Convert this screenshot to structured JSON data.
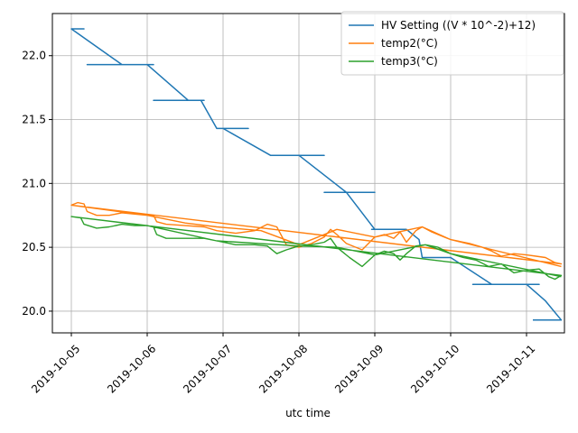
{
  "chart_data": {
    "type": "line",
    "title": "",
    "xlabel": "utc time",
    "ylabel": "",
    "xlim": [
      "2019-10-04T18:00",
      "2019-10-11T12:00"
    ],
    "ylim": [
      19.83,
      22.33
    ],
    "grid": true,
    "legend_position": "top-right",
    "x_tick_labels": [
      "2019-10-05",
      "2019-10-06",
      "2019-10-07",
      "2019-10-08",
      "2019-10-09",
      "2019-10-10",
      "2019-10-11"
    ],
    "y_ticks": [
      20.0,
      20.5,
      21.0,
      21.5,
      22.0
    ],
    "y_tick_labels": [
      "20.0",
      "20.5",
      "21.0",
      "21.5",
      "22.0"
    ],
    "series": [
      {
        "name": "HV Setting ((V * 10^-2)+12)",
        "color": "#1f77b4",
        "points": [
          [
            "2019-10-05T00:00",
            22.21
          ],
          [
            "2019-10-05T04:00",
            22.21
          ],
          [
            "2019-10-05T00:00",
            22.21
          ],
          [
            "2019-10-05T16:00",
            21.93
          ],
          [
            "2019-10-05T05:00",
            21.93
          ],
          [
            "2019-10-06T02:00",
            21.93
          ],
          [
            "2019-10-06T00:00",
            21.93
          ],
          [
            "2019-10-06T13:00",
            21.65
          ],
          [
            "2019-10-06T02:00",
            21.65
          ],
          [
            "2019-10-06T18:00",
            21.65
          ],
          [
            "2019-10-06T17:00",
            21.65
          ],
          [
            "2019-10-06T22:00",
            21.43
          ],
          [
            "2019-10-07T08:00",
            21.43
          ],
          [
            "2019-10-06T22:00",
            21.43
          ],
          [
            "2019-10-07T00:00",
            21.43
          ],
          [
            "2019-10-07T15:00",
            21.22
          ],
          [
            "2019-10-07T17:00",
            21.22
          ],
          [
            "2019-10-08T08:00",
            21.22
          ],
          [
            "2019-10-08T00:00",
            21.22
          ],
          [
            "2019-10-08T15:00",
            20.93
          ],
          [
            "2019-10-08T08:00",
            20.93
          ],
          [
            "2019-10-09T00:00",
            20.93
          ],
          [
            "2019-10-08T15:00",
            20.93
          ],
          [
            "2019-10-09T00:00",
            20.64
          ],
          [
            "2019-10-09T08:00",
            20.64
          ],
          [
            "2019-10-08T23:00",
            20.64
          ],
          [
            "2019-10-09T10:00",
            20.64
          ],
          [
            "2019-10-09T14:00",
            20.56
          ],
          [
            "2019-10-09T15:00",
            20.42
          ],
          [
            "2019-10-10T00:00",
            20.42
          ],
          [
            "2019-10-09T16:00",
            20.42
          ],
          [
            "2019-10-10T00:00",
            20.42
          ],
          [
            "2019-10-10T13:00",
            20.21
          ],
          [
            "2019-10-10T07:00",
            20.21
          ],
          [
            "2019-10-11T04:00",
            20.21
          ],
          [
            "2019-10-11T00:00",
            20.21
          ],
          [
            "2019-10-11T06:00",
            20.08
          ],
          [
            "2019-10-11T11:00",
            19.93
          ],
          [
            "2019-10-11T02:00",
            19.93
          ]
        ]
      },
      {
        "name": "temp2(°C)",
        "color": "#ff7f0e",
        "points": [
          [
            "2019-10-05T00:00",
            20.83
          ],
          [
            "2019-10-05T02:00",
            20.85
          ],
          [
            "2019-10-05T04:00",
            20.84
          ],
          [
            "2019-10-05T05:00",
            20.78
          ],
          [
            "2019-10-05T08:00",
            20.75
          ],
          [
            "2019-10-05T12:00",
            20.75
          ],
          [
            "2019-10-05T16:00",
            20.77
          ],
          [
            "2019-10-05T20:00",
            20.76
          ],
          [
            "2019-10-06T00:00",
            20.75
          ],
          [
            "2019-10-06T02:00",
            20.75
          ],
          [
            "2019-10-06T03:00",
            20.7
          ],
          [
            "2019-10-06T06:00",
            20.68
          ],
          [
            "2019-10-06T12:00",
            20.67
          ],
          [
            "2019-10-06T18:00",
            20.66
          ],
          [
            "2019-10-06T22:00",
            20.63
          ],
          [
            "2019-10-07T04:00",
            20.61
          ],
          [
            "2019-10-07T10:00",
            20.63
          ],
          [
            "2019-10-07T14:00",
            20.68
          ],
          [
            "2019-10-07T17:00",
            20.66
          ],
          [
            "2019-10-07T20:00",
            20.52
          ],
          [
            "2019-10-08T00:00",
            20.5
          ],
          [
            "2019-10-08T04:00",
            20.53
          ],
          [
            "2019-10-08T08:00",
            20.58
          ],
          [
            "2019-10-08T10:00",
            20.64
          ],
          [
            "2019-10-08T12:00",
            20.6
          ],
          [
            "2019-10-08T15:00",
            20.53
          ],
          [
            "2019-10-08T20:00",
            20.48
          ],
          [
            "2019-10-09T00:00",
            20.58
          ],
          [
            "2019-10-09T03:00",
            20.6
          ],
          [
            "2019-10-09T06:00",
            20.57
          ],
          [
            "2019-10-09T08:00",
            20.62
          ],
          [
            "2019-10-09T10:00",
            20.54
          ],
          [
            "2019-10-09T13:00",
            20.63
          ],
          [
            "2019-10-09T15:00",
            20.66
          ],
          [
            "2019-10-09T18:00",
            20.62
          ],
          [
            "2019-10-09T22:00",
            20.58
          ],
          [
            "2019-10-10T00:00",
            20.56
          ],
          [
            "2019-10-10T06:00",
            20.53
          ],
          [
            "2019-10-10T10:00",
            20.5
          ],
          [
            "2019-10-10T13:00",
            20.47
          ],
          [
            "2019-10-10T16:00",
            20.43
          ],
          [
            "2019-10-10T20:00",
            20.45
          ],
          [
            "2019-10-11T00:00",
            20.44
          ],
          [
            "2019-10-11T03:00",
            20.43
          ],
          [
            "2019-10-11T06:00",
            20.42
          ],
          [
            "2019-10-11T09:00",
            20.38
          ],
          [
            "2019-10-11T11:00",
            20.37
          ],
          [
            "2019-10-05T00:00",
            20.83
          ],
          [
            "2019-10-06T00:00",
            20.75
          ],
          [
            "2019-10-06T12:00",
            20.69
          ],
          [
            "2019-10-06T22:00",
            20.66
          ],
          [
            "2019-10-07T12:00",
            20.63
          ],
          [
            "2019-10-08T00:00",
            20.52
          ],
          [
            "2019-10-08T12:00",
            20.64
          ],
          [
            "2019-10-09T00:00",
            20.58
          ],
          [
            "2019-10-09T15:00",
            20.66
          ],
          [
            "2019-10-10T00:00",
            20.56
          ],
          [
            "2019-10-11T11:00",
            20.35
          ]
        ]
      },
      {
        "name": "temp3(°C)",
        "color": "#2ca02c",
        "points": [
          [
            "2019-10-05T00:00",
            20.74
          ],
          [
            "2019-10-05T03:00",
            20.73
          ],
          [
            "2019-10-05T04:00",
            20.68
          ],
          [
            "2019-10-05T08:00",
            20.65
          ],
          [
            "2019-10-05T12:00",
            20.66
          ],
          [
            "2019-10-05T16:00",
            20.68
          ],
          [
            "2019-10-05T20:00",
            20.67
          ],
          [
            "2019-10-06T00:00",
            20.67
          ],
          [
            "2019-10-06T02:00",
            20.66
          ],
          [
            "2019-10-06T03:00",
            20.6
          ],
          [
            "2019-10-06T06:00",
            20.57
          ],
          [
            "2019-10-06T12:00",
            20.57
          ],
          [
            "2019-10-06T18:00",
            20.57
          ],
          [
            "2019-10-06T22:00",
            20.55
          ],
          [
            "2019-10-07T04:00",
            20.52
          ],
          [
            "2019-10-07T10:00",
            20.52
          ],
          [
            "2019-10-07T14:00",
            20.51
          ],
          [
            "2019-10-07T17:00",
            20.45
          ],
          [
            "2019-10-07T20:00",
            20.48
          ],
          [
            "2019-10-08T00:00",
            20.51
          ],
          [
            "2019-10-08T04:00",
            20.52
          ],
          [
            "2019-10-08T08:00",
            20.54
          ],
          [
            "2019-10-08T10:00",
            20.57
          ],
          [
            "2019-10-08T12:00",
            20.5
          ],
          [
            "2019-10-08T16:00",
            20.42
          ],
          [
            "2019-10-08T20:00",
            20.35
          ],
          [
            "2019-10-09T00:00",
            20.44
          ],
          [
            "2019-10-09T03:00",
            20.47
          ],
          [
            "2019-10-09T06:00",
            20.45
          ],
          [
            "2019-10-09T08:00",
            20.4
          ],
          [
            "2019-10-09T10:00",
            20.45
          ],
          [
            "2019-10-09T13:00",
            20.51
          ],
          [
            "2019-10-09T16:00",
            20.52
          ],
          [
            "2019-10-09T20:00",
            20.5
          ],
          [
            "2019-10-10T00:00",
            20.45
          ],
          [
            "2019-10-10T04:00",
            20.42
          ],
          [
            "2019-10-10T08:00",
            20.4
          ],
          [
            "2019-10-10T12:00",
            20.35
          ],
          [
            "2019-10-10T16:00",
            20.37
          ],
          [
            "2019-10-10T20:00",
            20.3
          ],
          [
            "2019-10-11T00:00",
            20.32
          ],
          [
            "2019-10-11T04:00",
            20.33
          ],
          [
            "2019-10-11T07:00",
            20.27
          ],
          [
            "2019-10-11T09:00",
            20.25
          ],
          [
            "2019-10-11T11:00",
            20.28
          ],
          [
            "2019-10-05T00:00",
            20.74
          ],
          [
            "2019-10-06T00:00",
            20.67
          ],
          [
            "2019-10-06T22:00",
            20.55
          ],
          [
            "2019-10-08T00:00",
            20.51
          ],
          [
            "2019-10-08T12:00",
            20.5
          ],
          [
            "2019-10-09T00:00",
            20.44
          ],
          [
            "2019-10-09T16:00",
            20.52
          ],
          [
            "2019-10-10T00:00",
            20.45
          ],
          [
            "2019-10-11T11:00",
            20.27
          ]
        ]
      }
    ]
  }
}
